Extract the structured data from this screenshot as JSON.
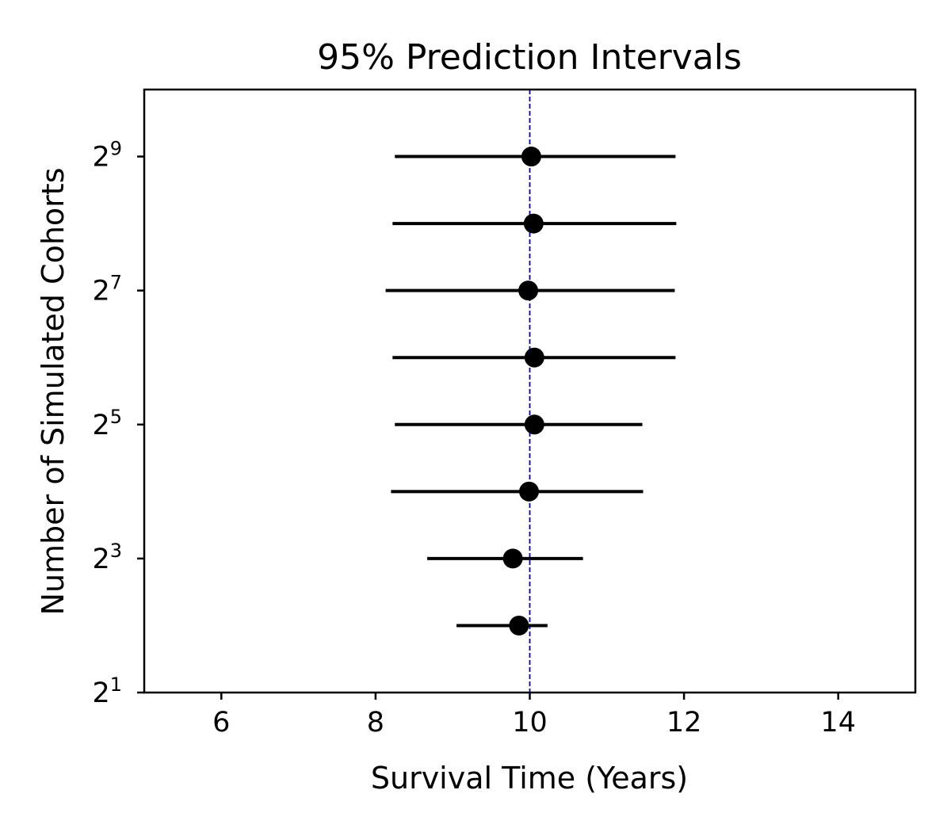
{
  "chart_data": {
    "type": "scatter",
    "title": "95% Prediction Intervals",
    "xlabel": "Survival Time (Years)",
    "ylabel": "Number of Simulated Cohorts",
    "xlim": [
      5,
      15
    ],
    "ylim_log2": [
      1,
      10
    ],
    "y_scale": "log2",
    "x_ticks": [
      6,
      8,
      10,
      12,
      14
    ],
    "y_ticks": [
      {
        "base": "2",
        "exp": "1"
      },
      {
        "base": "2",
        "exp": "3"
      },
      {
        "base": "2",
        "exp": "5"
      },
      {
        "base": "2",
        "exp": "7"
      },
      {
        "base": "2",
        "exp": "9"
      }
    ],
    "reference_line": {
      "x": 10,
      "style": "dashed",
      "color": "#0000cc"
    },
    "series": [
      {
        "marker_color": "#000000",
        "points": [
          {
            "cohorts": 4,
            "mean": 9.86,
            "lower": 9.05,
            "upper": 10.23
          },
          {
            "cohorts": 8,
            "mean": 9.78,
            "lower": 8.67,
            "upper": 10.69
          },
          {
            "cohorts": 16,
            "mean": 9.99,
            "lower": 8.2,
            "upper": 11.47
          },
          {
            "cohorts": 32,
            "mean": 10.06,
            "lower": 8.25,
            "upper": 11.46
          },
          {
            "cohorts": 64,
            "mean": 10.06,
            "lower": 8.22,
            "upper": 11.89
          },
          {
            "cohorts": 128,
            "mean": 9.98,
            "lower": 8.13,
            "upper": 11.88
          },
          {
            "cohorts": 256,
            "mean": 10.05,
            "lower": 8.22,
            "upper": 11.9
          },
          {
            "cohorts": 512,
            "mean": 10.02,
            "lower": 8.25,
            "upper": 11.89
          }
        ]
      }
    ],
    "grid": false,
    "legend": "none"
  }
}
